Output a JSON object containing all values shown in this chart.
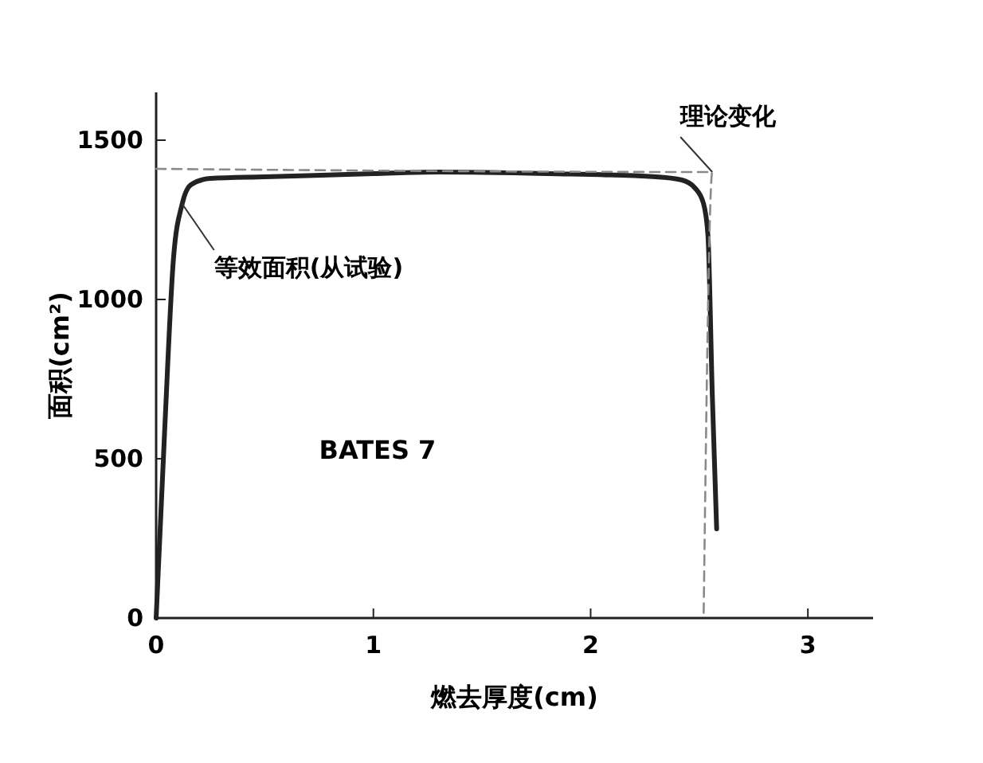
{
  "chart_data": {
    "type": "line",
    "xlabel": "燃去厚度(cm)",
    "ylabel": "面积(cm²)",
    "xlim": [
      0,
      3.3
    ],
    "ylim": [
      0,
      1650
    ],
    "xticks": [
      0,
      1,
      2,
      3
    ],
    "yticks": [
      0,
      500,
      1000,
      1500
    ],
    "grid": false,
    "marker": "none",
    "series": [
      {
        "color": "#222222",
        "line_style": "solid",
        "x": [
          0,
          0.04,
          0.08,
          0.12,
          0.16,
          0.25,
          0.5,
          1.0,
          1.3,
          1.8,
          2.3,
          2.42,
          2.48,
          2.52,
          2.54,
          2.56,
          2.58
        ],
        "values": [
          0,
          600,
          1130,
          1300,
          1360,
          1380,
          1385,
          1395,
          1400,
          1395,
          1385,
          1375,
          1350,
          1300,
          1200,
          700,
          280
        ]
      },
      {
        "color": "#8a8a8a",
        "line_style": "dashed",
        "x": [
          0,
          2.56,
          2.52
        ],
        "values": [
          1410,
          1400,
          0
        ]
      }
    ],
    "annotations": [
      {
        "text": "理论变化",
        "x": 2.56,
        "y": 1400
      },
      {
        "text": "等效面积(从试验)",
        "x": 0.12,
        "y": 1300
      },
      "BATES 7"
    ]
  }
}
